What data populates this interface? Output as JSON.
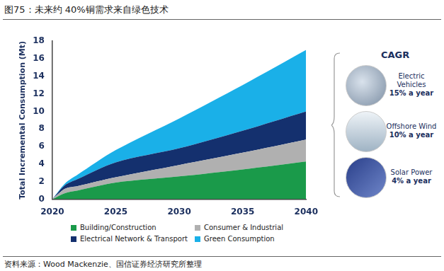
{
  "chart_data": {
    "type": "area",
    "title": "图75：未来约 40%铜需求来自绿色技术",
    "y_label": "Total Incremental Consumption (Mt)",
    "x": [
      2020,
      2021,
      2022,
      2025,
      2030,
      2035,
      2040
    ],
    "series": [
      {
        "name": "Building/Construction",
        "color": "#1a9a4a",
        "values": [
          0,
          0.7,
          1.0,
          1.9,
          2.6,
          3.4,
          4.3
        ]
      },
      {
        "name": "Consumer & Industrial",
        "color": "#b0b0b0",
        "values": [
          0,
          0.5,
          0.5,
          0.6,
          1.3,
          1.9,
          2.5
        ]
      },
      {
        "name": "Electrical Network & Transport",
        "color": "#14306e",
        "values": [
          0,
          0.4,
          0.8,
          1.7,
          1.9,
          2.5,
          3.2
        ]
      },
      {
        "name": "Green Consumption",
        "color": "#1ab0e8",
        "values": [
          0,
          0.2,
          0.5,
          1.4,
          3.4,
          5.2,
          7.0
        ]
      }
    ],
    "stacked": true,
    "xlim": [
      2020,
      2040
    ],
    "xticks": [
      2020,
      2025,
      2030,
      2035,
      2040
    ],
    "ylim": [
      0,
      18
    ],
    "yticks": [
      0,
      2,
      4,
      6,
      8,
      10,
      12,
      14,
      16,
      18
    ],
    "grid": false,
    "legend": "bottom",
    "side_panel": {
      "title": "CAGR",
      "items": [
        {
          "name": "Electric Vehicles",
          "rate": "15% a year"
        },
        {
          "name": "Offshore Wind",
          "rate": "10% a year"
        },
        {
          "name": "Solar Power",
          "rate": "4% a year"
        }
      ]
    },
    "source": "资料来源：Wood Mackenzie、国信证券经济研究所整理"
  }
}
